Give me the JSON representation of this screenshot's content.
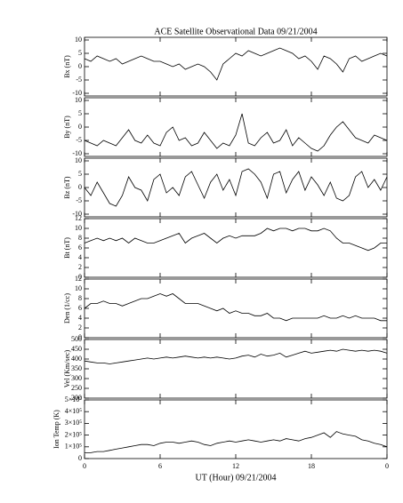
{
  "title": "ACE Satellite Observational Data  09/21/2004",
  "xlabel": "UT (Hour)  09/21/2004",
  "xlim": [
    0,
    24
  ],
  "xticks": [
    0,
    6,
    12,
    18,
    {
      "value": 24,
      "label": "0"
    }
  ],
  "x": [
    0,
    0.5,
    1,
    1.5,
    2,
    2.5,
    3,
    3.5,
    4,
    4.5,
    5,
    5.5,
    6,
    6.5,
    7,
    7.5,
    8,
    8.5,
    9,
    9.5,
    10,
    10.5,
    11,
    11.5,
    12,
    12.5,
    13,
    13.5,
    14,
    14.5,
    15,
    15.5,
    16,
    16.5,
    17,
    17.5,
    18,
    18.5,
    19,
    19.5,
    20,
    20.5,
    21,
    21.5,
    22,
    22.5,
    23,
    23.5,
    24
  ],
  "chart_data": [
    {
      "type": "line",
      "ylabel": "Bx (nT)",
      "color": "#000000",
      "ylim": [
        -11,
        11
      ],
      "yticks": [
        -10,
        -5,
        0,
        5,
        10
      ],
      "values": [
        3,
        2,
        4,
        3,
        2,
        3,
        1,
        2,
        3,
        4,
        3,
        2,
        2,
        1,
        0,
        1,
        -1,
        0,
        1,
        0,
        -2,
        -5,
        1,
        3,
        5,
        4,
        6,
        5,
        4,
        5,
        6,
        7,
        6,
        5,
        3,
        4,
        2,
        -1,
        4,
        3,
        1,
        -2,
        3,
        4,
        2,
        3,
        4,
        5,
        4
      ]
    },
    {
      "type": "line",
      "ylabel": "By (nT)",
      "color": "#000000",
      "ylim": [
        -11,
        11
      ],
      "yticks": [
        -10,
        -5,
        0,
        5,
        10
      ],
      "values": [
        -5,
        -6,
        -7,
        -5,
        -6,
        -7,
        -4,
        -1,
        -5,
        -6,
        -3,
        -6,
        -7,
        -2,
        0,
        -5,
        -4,
        -7,
        -6,
        -2,
        -5,
        -8,
        -6,
        -7,
        -3,
        5,
        -6,
        -7,
        -4,
        -2,
        -6,
        -5,
        -1,
        -7,
        -4,
        -6,
        -8,
        -9,
        -7,
        -3,
        0,
        2,
        -1,
        -4,
        -5,
        -6,
        -3,
        -4,
        -5
      ]
    },
    {
      "type": "line",
      "ylabel": "Bz (nT)",
      "color": "#000000",
      "ylim": [
        -11,
        11
      ],
      "yticks": [
        -10,
        -5,
        0,
        5,
        10
      ],
      "values": [
        0,
        -3,
        2,
        -2,
        -6,
        -7,
        -3,
        4,
        0,
        -1,
        -5,
        3,
        5,
        -2,
        0,
        -3,
        4,
        6,
        1,
        -4,
        2,
        5,
        -1,
        3,
        -3,
        6,
        7,
        5,
        2,
        -4,
        5,
        6,
        -2,
        3,
        6,
        -1,
        4,
        1,
        -3,
        2,
        -4,
        -5,
        -3,
        4,
        6,
        0,
        3,
        -1,
        4
      ]
    },
    {
      "type": "line",
      "ylabel": "Bt (nT)",
      "color": "#000000",
      "ylim": [
        0,
        12
      ],
      "yticks": [
        0,
        2,
        4,
        6,
        8,
        10,
        12
      ],
      "values": [
        7,
        7.5,
        8,
        7.5,
        8,
        7.5,
        8,
        7,
        8,
        7.5,
        7,
        7,
        7.5,
        8,
        8.5,
        9,
        7,
        8,
        8.5,
        9,
        8,
        7,
        8,
        8.5,
        8,
        8.5,
        8.5,
        8.5,
        9,
        10,
        9.5,
        10,
        10,
        9.5,
        10,
        10,
        9.5,
        9.5,
        10,
        9.5,
        8,
        7,
        7,
        6.5,
        6,
        5.5,
        6,
        7,
        7
      ]
    },
    {
      "type": "line",
      "ylabel": "Den (1/cc)",
      "color": "#000000",
      "ylim": [
        0,
        12
      ],
      "yticks": [
        0,
        2,
        4,
        6,
        8,
        10,
        12
      ],
      "values": [
        6,
        7,
        7,
        7.5,
        7,
        7,
        6.5,
        7,
        7.5,
        8,
        8,
        8.5,
        9,
        8.5,
        9,
        8,
        7,
        7,
        7,
        6.5,
        6,
        5.5,
        6,
        5,
        5.5,
        5,
        5,
        4.5,
        4.5,
        5,
        4,
        4,
        3.5,
        4,
        4,
        4,
        4,
        4,
        4.5,
        4,
        4,
        4.5,
        4,
        4.5,
        4,
        4,
        4,
        3.5,
        3.5
      ]
    },
    {
      "type": "line",
      "ylabel": "Vel (Km/sec)",
      "color": "#000000",
      "ylim": [
        200,
        500
      ],
      "yticks": [
        200,
        250,
        300,
        350,
        400,
        450,
        500
      ],
      "values": [
        390,
        385,
        380,
        380,
        375,
        380,
        385,
        390,
        395,
        400,
        405,
        400,
        405,
        410,
        405,
        410,
        415,
        410,
        405,
        410,
        405,
        410,
        405,
        400,
        405,
        415,
        420,
        410,
        425,
        415,
        420,
        430,
        410,
        420,
        430,
        440,
        430,
        435,
        440,
        445,
        440,
        450,
        445,
        440,
        445,
        440,
        445,
        440,
        430
      ]
    },
    {
      "type": "line",
      "ylabel": "Ion Temp (K)",
      "color": "#000000",
      "ylim": [
        0,
        500000
      ],
      "yticks": [
        0,
        {
          "value": 100000,
          "label": "1×10⁵"
        },
        {
          "value": 200000,
          "label": "2×10⁵"
        },
        {
          "value": 300000,
          "label": "3×10⁵"
        },
        {
          "value": 400000,
          "label": "4×10⁵"
        },
        {
          "value": 500000,
          "label": "5×10⁵"
        }
      ],
      "values": [
        50000,
        50000,
        60000,
        60000,
        70000,
        80000,
        90000,
        100000,
        110000,
        120000,
        120000,
        110000,
        130000,
        140000,
        140000,
        130000,
        140000,
        150000,
        140000,
        120000,
        110000,
        130000,
        140000,
        150000,
        140000,
        150000,
        160000,
        150000,
        140000,
        150000,
        160000,
        150000,
        170000,
        160000,
        150000,
        170000,
        180000,
        200000,
        220000,
        180000,
        230000,
        210000,
        200000,
        190000,
        160000,
        150000,
        130000,
        120000,
        100000
      ]
    }
  ]
}
